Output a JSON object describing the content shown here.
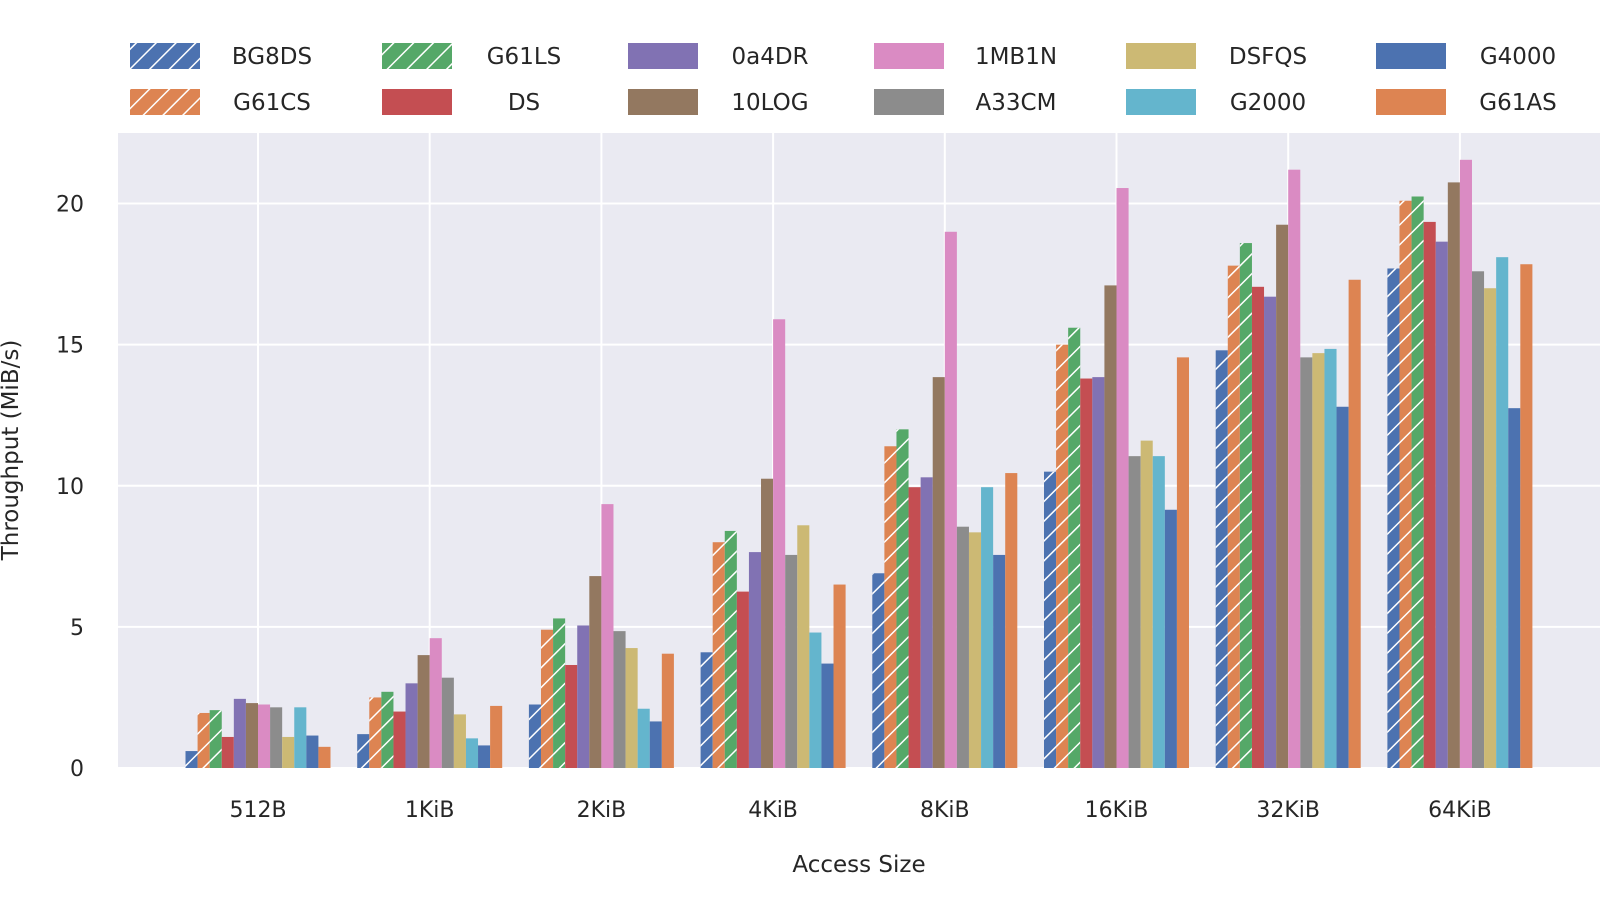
{
  "chart_data": {
    "type": "bar",
    "title": "",
    "xlabel": "Access Size",
    "ylabel": "Throughput (MiB/s)",
    "ylim": [
      0,
      22.5
    ],
    "yticks": [
      0,
      5,
      10,
      15,
      20
    ],
    "grid": true,
    "legend_position": "top",
    "categories": [
      "512B",
      "1KiB",
      "2KiB",
      "4KiB",
      "8KiB",
      "16KiB",
      "32KiB",
      "64KiB"
    ],
    "series": [
      {
        "name": "BG8DS",
        "color": "#4c72b0",
        "hatched": true,
        "values": [
          0.6,
          1.2,
          2.25,
          4.1,
          6.9,
          10.5,
          14.8,
          17.7
        ]
      },
      {
        "name": "G61CS",
        "color": "#dd8452",
        "hatched": true,
        "values": [
          1.95,
          2.5,
          4.9,
          8.0,
          11.4,
          15.0,
          17.8,
          20.1
        ]
      },
      {
        "name": "G61LS",
        "color": "#55a868",
        "hatched": true,
        "values": [
          2.05,
          2.7,
          5.3,
          8.4,
          12.0,
          15.6,
          18.6,
          20.25
        ]
      },
      {
        "name": "DS",
        "color": "#c44e52",
        "hatched": false,
        "values": [
          1.1,
          2.0,
          3.65,
          6.25,
          9.95,
          13.8,
          17.05,
          19.35
        ]
      },
      {
        "name": "0a4DR",
        "color": "#8172b3",
        "hatched": false,
        "values": [
          2.45,
          3.0,
          5.05,
          7.65,
          10.3,
          13.85,
          16.7,
          18.65
        ]
      },
      {
        "name": "10LOG",
        "color": "#937860",
        "hatched": false,
        "values": [
          2.3,
          4.0,
          6.8,
          10.25,
          13.85,
          17.1,
          19.25,
          20.75
        ]
      },
      {
        "name": "1MB1N",
        "color": "#da8bc3",
        "hatched": false,
        "values": [
          2.25,
          4.6,
          9.35,
          15.9,
          19.0,
          20.55,
          21.2,
          21.55
        ]
      },
      {
        "name": "A33CM",
        "color": "#8c8c8c",
        "hatched": false,
        "values": [
          2.15,
          3.2,
          4.85,
          7.55,
          8.55,
          11.05,
          14.55,
          17.6
        ]
      },
      {
        "name": "DSFQS",
        "color": "#ccb974",
        "hatched": false,
        "values": [
          1.1,
          1.9,
          4.25,
          8.6,
          8.35,
          11.6,
          14.7,
          17.0
        ]
      },
      {
        "name": "G2000",
        "color": "#64b5cd",
        "hatched": false,
        "values": [
          2.15,
          1.05,
          2.1,
          4.8,
          9.95,
          11.05,
          14.85,
          18.1
        ]
      },
      {
        "name": "G4000",
        "color": "#4c72b0",
        "hatched": false,
        "values": [
          1.15,
          0.8,
          1.65,
          3.7,
          7.55,
          9.15,
          12.8,
          12.75
        ]
      },
      {
        "name": "G61AS",
        "color": "#dd8452",
        "hatched": false,
        "values": [
          0.75,
          2.2,
          4.05,
          6.5,
          10.45,
          14.55,
          17.3,
          17.85
        ]
      }
    ]
  },
  "colors": {
    "plot_background": "#eaeaf2",
    "grid": "#ffffff",
    "text": "#262626"
  }
}
